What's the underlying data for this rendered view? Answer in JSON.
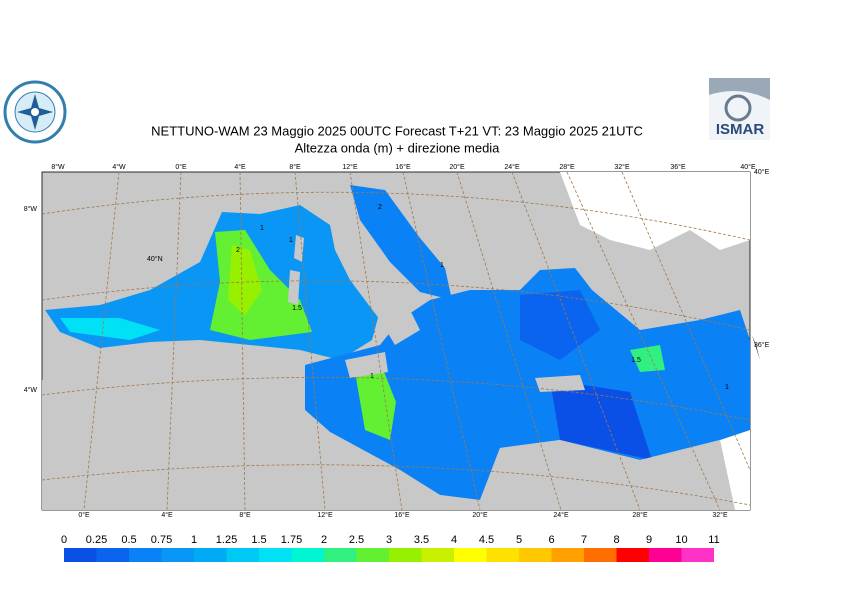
{
  "header": {
    "title": "NETTUNO-WAM  23   Maggio  2025 00UTC Forecast T+21 VT: 23   Maggio  2025 21UTC",
    "subtitle": "Altezza onda (m) + direzione media",
    "logo_right": "ISMAR"
  },
  "map": {
    "top_labels": [
      "8°W",
      "4°W",
      "0°E",
      "4°E",
      "8°E",
      "12°E",
      "16°E",
      "20°E",
      "24°E",
      "28°E",
      "32°E",
      "36°E",
      "40°E"
    ],
    "bottom_labels": [
      "0°E",
      "4°E",
      "8°E",
      "12°E",
      "16°E",
      "20°E",
      "24°E",
      "28°E",
      "32°E"
    ],
    "left_labels": [
      "8°W",
      "4°W"
    ],
    "right_labels": [
      "40°E",
      "36°E"
    ],
    "lat_label": "40°N",
    "contour_labels": [
      "2",
      "1",
      "1",
      "1.5",
      "1",
      "2",
      "1",
      "1.5",
      "1"
    ]
  },
  "colorbar": {
    "levels": [
      "0",
      "0.25",
      "0.5",
      "0.75",
      "1",
      "1.25",
      "1.5",
      "1.75",
      "2",
      "2.5",
      "3",
      "3.5",
      "4",
      "4.5",
      "5",
      "6",
      "7",
      "8",
      "9",
      "10",
      "11"
    ],
    "colors": [
      "#0a50e6",
      "#0a64f0",
      "#0a82f5",
      "#0a96f5",
      "#00aaf5",
      "#00c8f5",
      "#00e1f5",
      "#00f5d2",
      "#32f080",
      "#64f032",
      "#96f000",
      "#c8f000",
      "#ffff00",
      "#ffe100",
      "#ffc800",
      "#ffa000",
      "#ff6e00",
      "#ff0000",
      "#ff0096",
      "#ff32c8"
    ]
  }
}
